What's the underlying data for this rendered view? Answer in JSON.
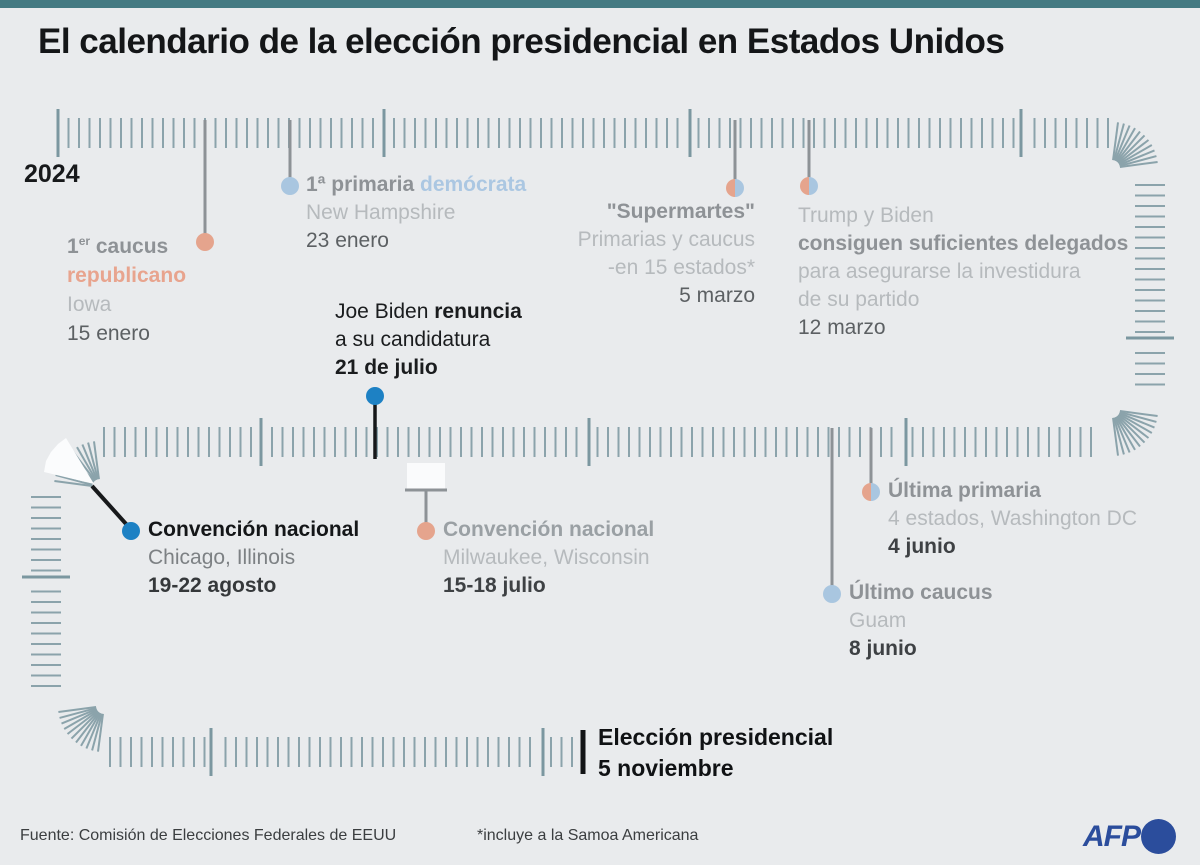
{
  "header": {
    "title": "El calendario de la elección presidencial en Estados Unidos"
  },
  "year_label": "2024",
  "events": {
    "iowa": {
      "title_prefix": "1",
      "title_sup": "er",
      "title_rest": " caucus",
      "party_word": "republicano",
      "location": "Iowa",
      "date": "15 enero",
      "marker_color": "#e5a48d"
    },
    "new_hampshire": {
      "title": "1ª primaria ",
      "party_word": "demócrata",
      "location": "New Hampshire",
      "date": "23 enero",
      "marker_color": "#a9c6e0"
    },
    "supermartes": {
      "title": "\"Supermartes\"",
      "line2": "Primarias y caucus",
      "line3": "-en 15 estados*",
      "date": "5 marzo",
      "marker_color": "dual"
    },
    "delegates": {
      "line1": "Trump y Biden",
      "line2": "consiguen suficientes delegados",
      "line3": "para asegurarse la investidura",
      "line4": "de su partido",
      "date": "12 marzo",
      "marker_color": "dual"
    },
    "biden_renuncia": {
      "line1_normal": "Joe Biden ",
      "line1_bold": "renuncia",
      "line2": "a su candidatura",
      "date": "21 de julio",
      "marker_color": "#1d81c4"
    },
    "convencion_chicago": {
      "title": "Convención nacional",
      "location": "Chicago, Illinois",
      "date": "19-22 agosto",
      "marker_color": "#1d81c4"
    },
    "convencion_milwaukee": {
      "title": "Convención nacional",
      "location": "Milwaukee, Wisconsin",
      "date": "15-18 julio",
      "marker_color": "#e5a48d"
    },
    "ultima_primaria": {
      "title": "Última primaria",
      "location": "4 estados, Washington DC",
      "date": "4 junio",
      "marker_color": "dual"
    },
    "ultimo_caucus": {
      "title": "Último caucus",
      "location": "Guam",
      "date": "8 junio",
      "marker_color": "#a9c6e0"
    },
    "eleccion": {
      "title": "Elección presidencial",
      "date": "5 noviembre"
    }
  },
  "footer": {
    "source": "Fuente: Comisión de Elecciones Federales de EEUU",
    "note": "*incluye a la Samoa Americana",
    "logo_text": "AFP"
  },
  "colors": {
    "republican": "#e5a48d",
    "democrat": "#a9c6e0",
    "accent_blue": "#1d81c4",
    "tick": "#8ba3ab",
    "top_bar": "#447a82",
    "afp_blue": "#2b4d9c"
  }
}
